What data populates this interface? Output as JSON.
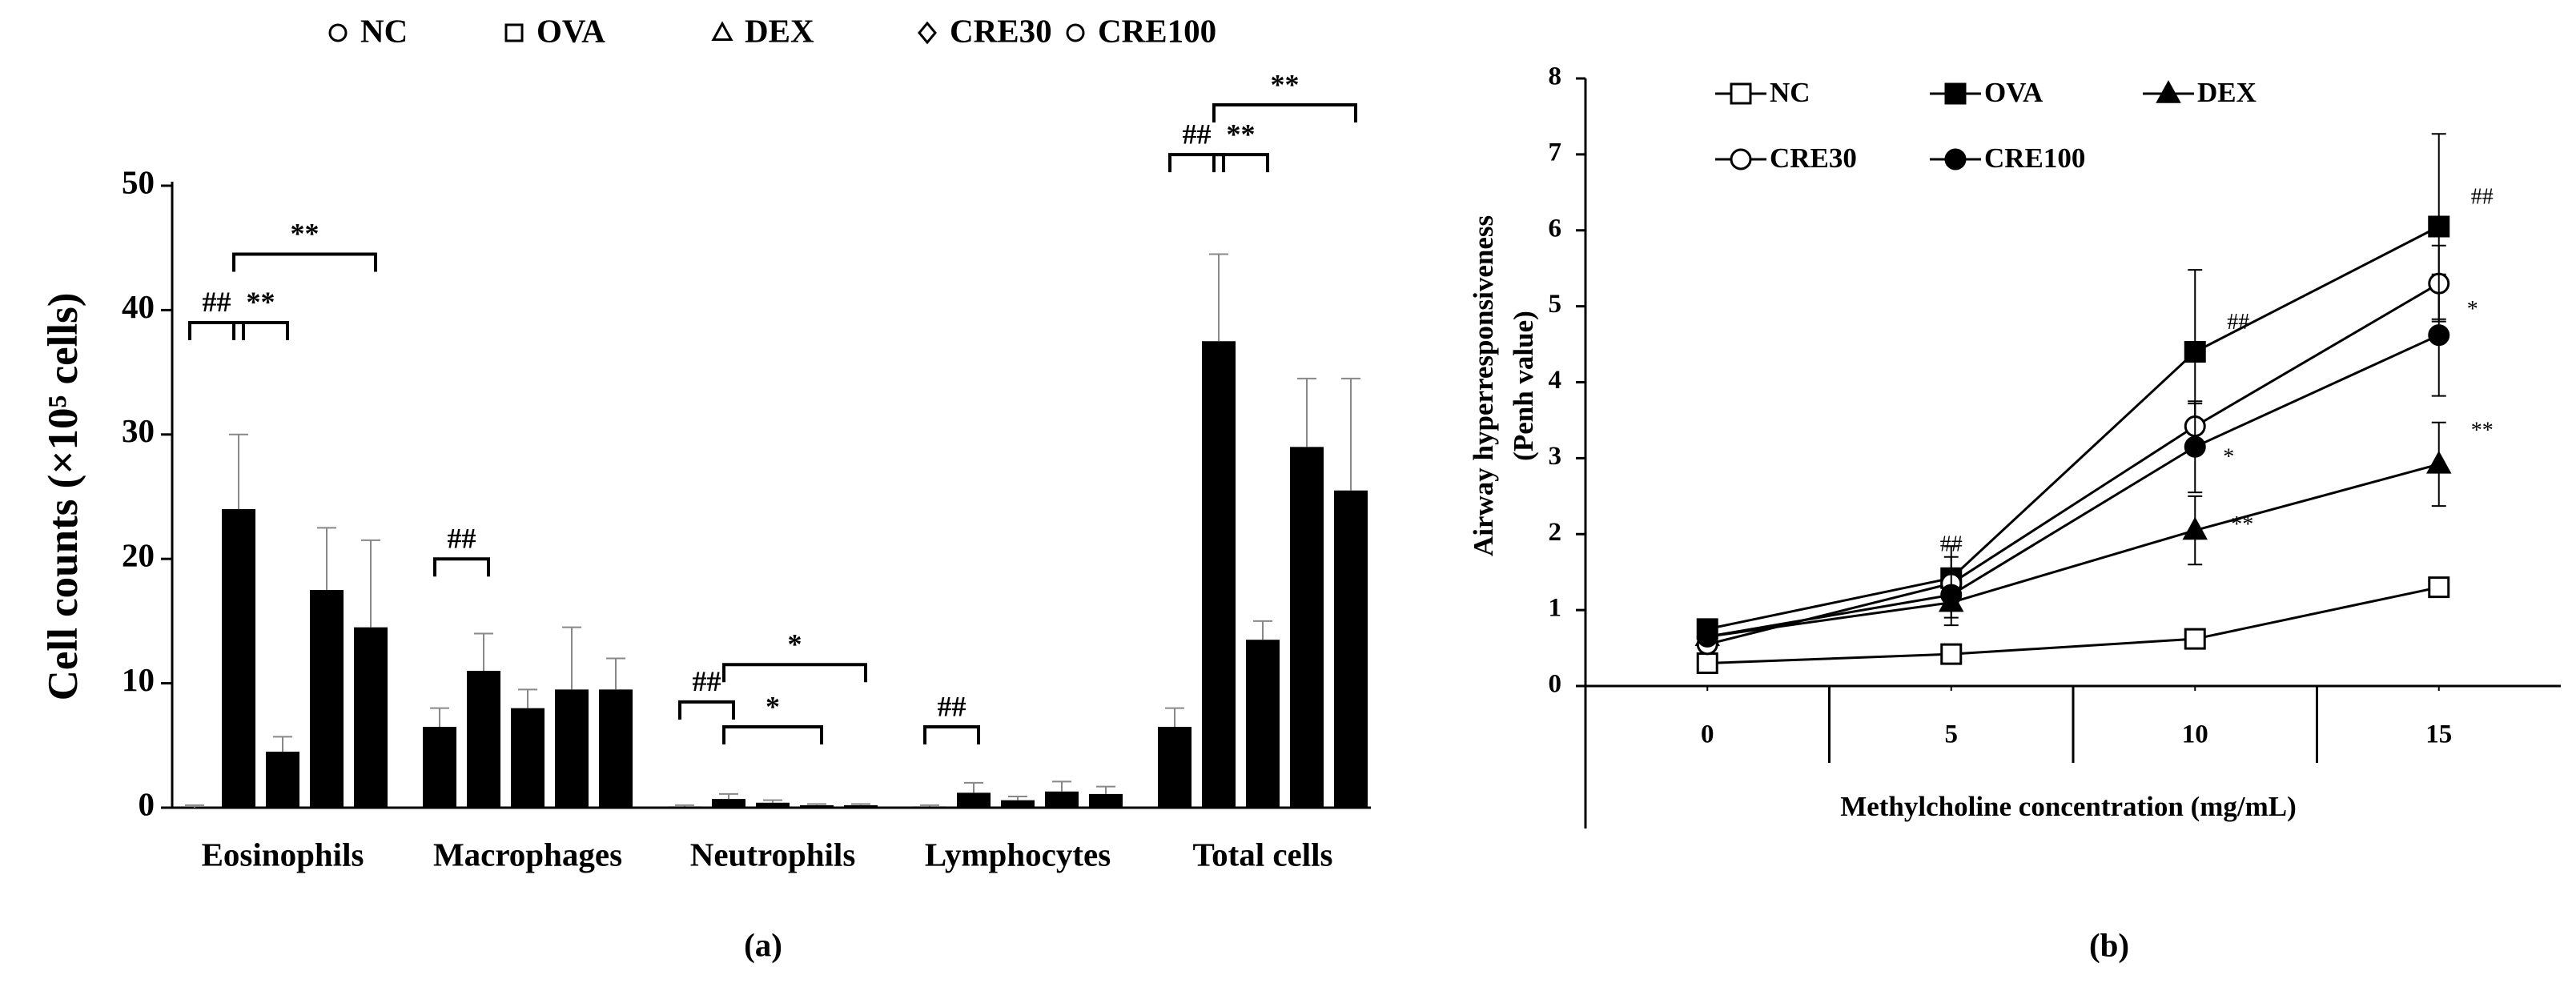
{
  "chart_data": [
    {
      "type": "bar",
      "ylabel": "Cell counts (×10⁵ cells)",
      "panel": "(a)",
      "categories": [
        "Eosinophils",
        "Macrophages",
        "Neutrophils",
        "Lymphocytes",
        "Total cells"
      ],
      "series": [
        {
          "name": "NC",
          "marker": "circle",
          "color": "#000000",
          "values": [
            0,
            6.5,
            0.1,
            0.1,
            6.5
          ],
          "errors": [
            0.2,
            1.5,
            0.1,
            0.1,
            1.5
          ]
        },
        {
          "name": "OVA",
          "marker": "square",
          "color": "#000000",
          "values": [
            24,
            11,
            0.7,
            1.2,
            37.5
          ],
          "errors": [
            6,
            3,
            0.4,
            0.8,
            7
          ]
        },
        {
          "name": "DEX",
          "marker": "triangle",
          "color": "#000000",
          "values": [
            4.5,
            8,
            0.4,
            0.6,
            13.5
          ],
          "errors": [
            1.2,
            1.5,
            0.2,
            0.3,
            1.5
          ]
        },
        {
          "name": "CRE30",
          "marker": "diamond",
          "color": "#000000",
          "values": [
            17.5,
            9.5,
            0.2,
            1.3,
            29
          ],
          "errors": [
            5,
            5,
            0.1,
            0.8,
            5.5
          ]
        },
        {
          "name": "CRE100",
          "marker": "circle",
          "color": "#000000",
          "values": [
            14.5,
            9.5,
            0.2,
            1.1,
            25.5
          ],
          "errors": [
            7,
            2.5,
            0.1,
            0.6,
            9
          ]
        }
      ],
      "ylim": [
        0,
        50
      ],
      "yticks": [
        0,
        10,
        20,
        30,
        40,
        50
      ],
      "annotations": [
        "##",
        "**",
        "**",
        "##",
        "##",
        "*",
        "*",
        "##",
        "##",
        "**",
        "**"
      ]
    },
    {
      "type": "line",
      "ylabel": [
        "Airway hyperresponsiveness",
        "(Penh value)"
      ],
      "xlabel": "Methylcholine concentration (mg/mL)",
      "panel": "(b)",
      "x": [
        0,
        5,
        10,
        15
      ],
      "xlim": [
        -2.5,
        17.5
      ],
      "xticks": [
        0,
        5,
        10,
        15
      ],
      "ylim": [
        0,
        8
      ],
      "yticks": [
        0,
        1,
        2,
        3,
        4,
        5,
        6,
        7,
        8
      ],
      "series": [
        {
          "name": "NC",
          "marker": "square",
          "filled": false,
          "color": "#000000",
          "values": [
            0.3,
            0.42,
            0.62,
            1.3
          ],
          "errors": [
            0.05,
            0.05,
            0.12,
            0.08
          ]
        },
        {
          "name": "OVA",
          "marker": "square",
          "filled": true,
          "color": "#000000",
          "values": [
            0.75,
            1.42,
            4.4,
            6.05
          ],
          "errors": [
            0.1,
            0.42,
            1.08,
            1.22
          ]
        },
        {
          "name": "DEX",
          "marker": "triangle",
          "filled": true,
          "color": "#000000",
          "values": [
            0.65,
            1.1,
            2.05,
            2.92
          ],
          "errors": [
            0.05,
            0.3,
            0.45,
            0.55
          ]
        },
        {
          "name": "CRE30",
          "marker": "circle",
          "filled": false,
          "color": "#000000",
          "values": [
            0.55,
            1.35,
            3.42,
            5.3
          ],
          "errors": [
            0.05,
            0.35,
            0.3,
            0.5
          ]
        },
        {
          "name": "CRE100",
          "marker": "circle",
          "filled": true,
          "color": "#000000",
          "values": [
            0.65,
            1.2,
            3.15,
            4.62
          ],
          "errors": [
            0.05,
            0.3,
            0.6,
            0.8
          ]
        }
      ],
      "annotations": [
        "##",
        "##",
        "##",
        "*",
        "*",
        "**",
        "**"
      ]
    }
  ]
}
